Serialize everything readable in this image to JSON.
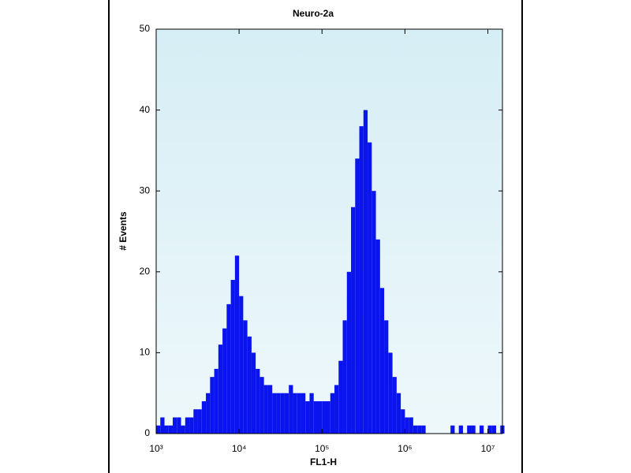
{
  "chart_data": {
    "type": "histogram",
    "title": "Neuro-2a",
    "xlabel": "FL1-H",
    "ylabel": "# Events",
    "color": "#0a14ee",
    "xscale": "log",
    "xlim": [
      1000,
      15000000
    ],
    "ylim": [
      0,
      50
    ],
    "xticks": [
      {
        "value": 1000,
        "label": "10³"
      },
      {
        "value": 10000,
        "label": "10⁴"
      },
      {
        "value": 100000,
        "label": "10⁵"
      },
      {
        "value": 1000000,
        "label": "10⁶"
      },
      {
        "value": 10000000,
        "label": "10⁷"
      }
    ],
    "yticks": [
      0,
      10,
      20,
      30,
      40,
      50
    ],
    "bins": [
      1000,
      1122,
      1259,
      1413,
      1585,
      1778,
      1995,
      2239,
      2512,
      2818,
      3162,
      3548,
      3981,
      4467,
      5012,
      5623,
      6310,
      7079,
      7943,
      8913,
      10000,
      11220,
      12590,
      14130,
      15850,
      17780,
      19950,
      22390,
      25120,
      28180,
      31620,
      35480,
      39810,
      44670,
      50120,
      56230,
      63100,
      70790,
      79430,
      89130,
      100000,
      112200,
      125900,
      141300,
      158500,
      177800,
      199500,
      223900,
      251200,
      281800,
      316200,
      354800,
      398100,
      446700,
      501200,
      562300,
      631000,
      707900,
      794300,
      891300,
      1000000,
      1122000,
      1259000,
      1413000,
      1585000,
      1778000,
      1995000,
      2239000,
      2512000,
      2818000,
      3162000,
      3548000,
      3981000,
      4467000,
      5012000,
      5623000,
      6310000,
      7079000,
      7943000,
      8913000,
      10000000,
      11220000,
      12590000,
      14130000,
      15850000
    ],
    "values": [
      1,
      2,
      1,
      1,
      2,
      2,
      1,
      2,
      2,
      3,
      3,
      4,
      5,
      7,
      8,
      11,
      13,
      16,
      19,
      22,
      17,
      14,
      12,
      10,
      8,
      7,
      6,
      6,
      5,
      5,
      5,
      5,
      6,
      5,
      5,
      5,
      4,
      5,
      4,
      4,
      4,
      4,
      5,
      6,
      9,
      14,
      20,
      28,
      34,
      38,
      40,
      36,
      30,
      24,
      18,
      14,
      10,
      7,
      5,
      3,
      2,
      2,
      1,
      1,
      1,
      0,
      0,
      0,
      0,
      0,
      0,
      1,
      0,
      1,
      0,
      1,
      1,
      0,
      1,
      0,
      1,
      1,
      0,
      1
    ],
    "grid": false
  }
}
